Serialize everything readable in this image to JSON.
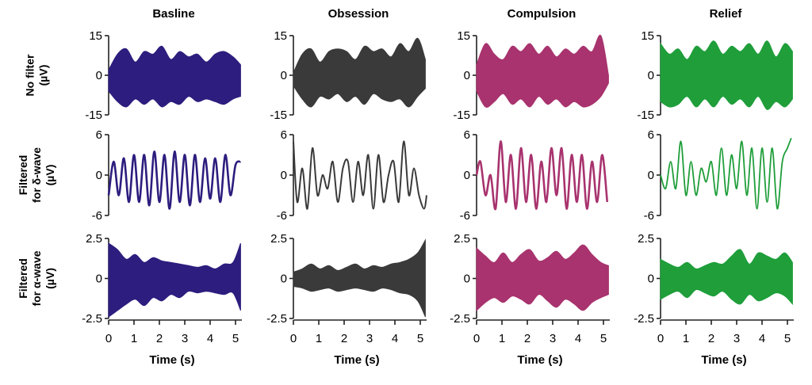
{
  "chart_data": {
    "type": "line",
    "columns": [
      "Basline",
      "Obsession",
      "Compulsion",
      "Relief"
    ],
    "column_colors": [
      "#2d1d7e",
      "#3a3a3a",
      "#a8336e",
      "#1f9e3a"
    ],
    "x_label": "Time (s)",
    "x_ticks": [
      "0",
      "1",
      "2",
      "3",
      "4",
      "5"
    ],
    "xlim": [
      0,
      5.25
    ],
    "rows": [
      {
        "label_lines": [
          "No filter",
          "(µV)"
        ],
        "y_ticks": [
          "15",
          "0",
          "-15"
        ],
        "ylim": [
          -15,
          15
        ],
        "style": "envelope",
        "series": [
          {
            "name": "Basline",
            "lower": [
              -6,
              -10,
              -12,
              -9,
              -11,
              -9,
              -12,
              -10,
              -11,
              -8,
              -10,
              -9,
              -10,
              -11,
              -9,
              -8
            ],
            "upper": [
              2,
              8,
              10,
              5,
              9,
              8,
              11,
              6,
              9,
              7,
              8,
              5,
              8,
              9,
              7,
              4
            ]
          },
          {
            "name": "Obsession",
            "lower": [
              -4,
              -9,
              -12,
              -8,
              -9,
              -7,
              -10,
              -8,
              -11,
              -7,
              -9,
              -10,
              -9,
              -12,
              -8,
              -5
            ],
            "upper": [
              1,
              8,
              10,
              5,
              9,
              10,
              9,
              6,
              11,
              9,
              10,
              7,
              12,
              9,
              14,
              6
            ]
          },
          {
            "name": "Compulsion",
            "lower": [
              -6,
              -12,
              -10,
              -7,
              -11,
              -9,
              -12,
              -8,
              -11,
              -9,
              -12,
              -10,
              -12,
              -11,
              -8,
              -3
            ],
            "upper": [
              4,
              12,
              8,
              6,
              11,
              9,
              12,
              8,
              11,
              7,
              10,
              8,
              11,
              9,
              15,
              0
            ]
          },
          {
            "name": "Relief",
            "lower": [
              -10,
              -12,
              -11,
              -8,
              -12,
              -9,
              -12,
              -8,
              -11,
              -9,
              -12,
              -8,
              -13,
              -10,
              -12,
              -9
            ],
            "upper": [
              12,
              8,
              10,
              6,
              11,
              9,
              13,
              8,
              11,
              9,
              12,
              8,
              13,
              7,
              12,
              9
            ]
          }
        ]
      },
      {
        "label_lines": [
          "Filtered",
          "for δ-wave",
          "(µV)"
        ],
        "y_ticks": [
          "6",
          "0",
          "-6"
        ],
        "ylim": [
          -6,
          6
        ],
        "style": "line",
        "series": [
          {
            "name": "Basline",
            "stroke": 2.6,
            "x": [
              0,
              0.2,
              0.4,
              0.6,
              0.8,
              1.0,
              1.2,
              1.4,
              1.6,
              1.8,
              2.0,
              2.2,
              2.4,
              2.6,
              2.8,
              3.0,
              3.2,
              3.4,
              3.6,
              3.8,
              4.0,
              4.2,
              4.4,
              4.6,
              4.8,
              5.0,
              5.2
            ],
            "y": [
              -3,
              2,
              -3,
              2.5,
              -4,
              3,
              -4,
              3,
              -4.5,
              3.5,
              -4,
              3,
              -5,
              3.5,
              -4,
              3,
              -4.5,
              3,
              -4,
              2.5,
              -3.5,
              2.5,
              -4,
              3,
              -3,
              1.5,
              2
            ]
          },
          {
            "name": "Obsession",
            "stroke": 2.0,
            "x": [
              0,
              0.15,
              0.35,
              0.55,
              0.75,
              0.95,
              1.15,
              1.35,
              1.55,
              1.75,
              1.95,
              2.15,
              2.35,
              2.55,
              2.75,
              2.95,
              3.15,
              3.35,
              3.55,
              3.75,
              3.95,
              4.15,
              4.35,
              4.55,
              4.75,
              4.95,
              5.15,
              5.25
            ],
            "y": [
              5,
              -4,
              1,
              -5,
              4,
              -3,
              0,
              -2,
              2,
              -4,
              1,
              2,
              -4,
              2,
              -3,
              3,
              -5,
              3,
              -4,
              0,
              2,
              -4,
              5,
              -3,
              1,
              -3,
              -5,
              -3
            ]
          },
          {
            "name": "Compulsion",
            "stroke": 2.6,
            "x": [
              0,
              0.15,
              0.35,
              0.55,
              0.75,
              0.95,
              1.15,
              1.35,
              1.55,
              1.75,
              1.95,
              2.15,
              2.35,
              2.55,
              2.75,
              2.95,
              3.15,
              3.35,
              3.55,
              3.75,
              3.95,
              4.15,
              4.35,
              4.55,
              4.75,
              4.95,
              5.15
            ],
            "y": [
              0,
              2,
              -3,
              0,
              -5,
              5,
              -4,
              3,
              -5,
              4,
              -4,
              3,
              -5,
              2,
              -4,
              4,
              -3,
              4,
              -5,
              3,
              -4,
              3,
              -5,
              2,
              -4,
              3,
              -4
            ]
          },
          {
            "name": "Relief",
            "stroke": 1.8,
            "x": [
              0,
              0.2,
              0.4,
              0.6,
              0.8,
              1.0,
              1.2,
              1.4,
              1.6,
              1.8,
              2.0,
              2.2,
              2.4,
              2.6,
              2.8,
              3.0,
              3.2,
              3.4,
              3.6,
              3.8,
              4.0,
              4.2,
              4.4,
              4.6,
              4.8,
              5.0,
              5.15
            ],
            "y": [
              0,
              -2,
              2,
              -2,
              5,
              -3,
              2,
              -3,
              1,
              -1,
              2,
              -3,
              4,
              -3,
              3,
              -2,
              5,
              -3,
              4,
              -5,
              4,
              -4,
              4,
              -5,
              2,
              4,
              5.5
            ]
          }
        ]
      },
      {
        "label_lines": [
          "Filtered",
          "for α-wave",
          "(µV)"
        ],
        "y_ticks": [
          "2.5",
          "0",
          "-2.5"
        ],
        "ylim": [
          -2.5,
          2.5
        ],
        "style": "envelope",
        "series": [
          {
            "name": "Basline",
            "lower": [
              -2.4,
              -2.0,
              -1.6,
              -1.3,
              -1.7,
              -1.2,
              -1.4,
              -1.0,
              -1.2,
              -0.8,
              -0.9,
              -0.8,
              -0.9,
              -1.0,
              -0.9,
              -2.0
            ],
            "upper": [
              2.2,
              1.8,
              1.2,
              1.5,
              1.0,
              1.3,
              1.1,
              1.0,
              0.9,
              0.8,
              0.7,
              0.8,
              0.6,
              0.9,
              1.0,
              2.2
            ]
          },
          {
            "name": "Obsession",
            "lower": [
              -0.5,
              -0.6,
              -0.8,
              -0.7,
              -0.6,
              -0.8,
              -0.7,
              -0.6,
              -0.7,
              -0.8,
              -0.6,
              -0.7,
              -0.9,
              -1.0,
              -1.4,
              -2.4
            ],
            "upper": [
              0.4,
              0.6,
              0.9,
              0.6,
              0.8,
              0.5,
              0.7,
              0.9,
              0.6,
              0.8,
              0.7,
              0.9,
              1.0,
              1.2,
              1.6,
              2.4
            ]
          },
          {
            "name": "Compulsion",
            "lower": [
              -2.0,
              -1.5,
              -1.2,
              -1.5,
              -1.1,
              -1.3,
              -1.6,
              -1.0,
              -1.4,
              -1.8,
              -1.3,
              -1.6,
              -2.0,
              -1.5,
              -1.2,
              -1.0
            ],
            "upper": [
              1.9,
              1.4,
              1.0,
              1.6,
              1.0,
              1.5,
              1.8,
              1.1,
              1.3,
              1.7,
              1.2,
              1.6,
              2.1,
              1.5,
              1.0,
              0.8
            ]
          },
          {
            "name": "Relief",
            "lower": [
              -1.3,
              -1.0,
              -0.8,
              -1.2,
              -0.7,
              -0.9,
              -1.1,
              -0.8,
              -1.3,
              -1.6,
              -1.0,
              -1.4,
              -1.2,
              -0.9,
              -1.1,
              -1.6
            ],
            "upper": [
              1.2,
              0.9,
              0.7,
              1.0,
              0.6,
              0.8,
              1.0,
              0.9,
              1.4,
              1.8,
              0.9,
              1.6,
              1.4,
              1.2,
              1.6,
              1.0
            ]
          }
        ]
      }
    ]
  }
}
